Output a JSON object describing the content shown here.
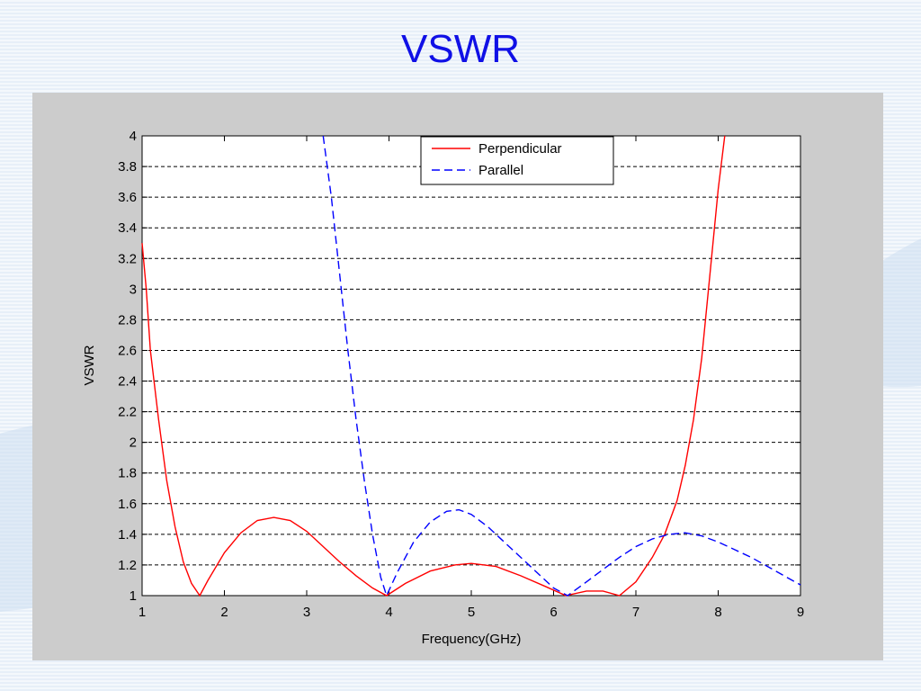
{
  "slide": {
    "title": "VSWR"
  },
  "colors": {
    "perpendicular": "#ff0000",
    "parallel": "#0000ff",
    "title": "#1010e6",
    "panel": "#cccccc"
  },
  "chart_data": {
    "type": "line",
    "title": "",
    "xlabel": "Frequency(GHz)",
    "ylabel": "VSWR",
    "xlim": [
      1,
      9
    ],
    "ylim": [
      1,
      4
    ],
    "xticks": [
      1,
      2,
      3,
      4,
      5,
      6,
      7,
      8,
      9
    ],
    "yticks": [
      1,
      1.2,
      1.4,
      1.6,
      1.8,
      2,
      2.2,
      2.4,
      2.6,
      2.8,
      3,
      3.2,
      3.4,
      3.6,
      3.8,
      4
    ],
    "grid": "horizontal dashed",
    "legend_position": "top-right",
    "series": [
      {
        "name": "Perpendicular",
        "style": "solid",
        "color": "#ff0000",
        "x": [
          1.0,
          1.05,
          1.1,
          1.2,
          1.3,
          1.4,
          1.5,
          1.6,
          1.7,
          1.8,
          2.0,
          2.2,
          2.4,
          2.6,
          2.8,
          3.0,
          3.2,
          3.4,
          3.6,
          3.8,
          3.97,
          4.2,
          4.5,
          4.8,
          5.0,
          5.3,
          5.6,
          5.9,
          6.15,
          6.4,
          6.6,
          6.8,
          7.0,
          7.2,
          7.35,
          7.5,
          7.6,
          7.7,
          7.8,
          7.9,
          8.0,
          8.08
        ],
        "y": [
          3.3,
          3.0,
          2.6,
          2.15,
          1.75,
          1.45,
          1.22,
          1.08,
          1.0,
          1.1,
          1.28,
          1.41,
          1.49,
          1.51,
          1.49,
          1.42,
          1.32,
          1.22,
          1.13,
          1.05,
          1.0,
          1.08,
          1.16,
          1.2,
          1.21,
          1.19,
          1.13,
          1.06,
          1.0,
          1.03,
          1.03,
          1.0,
          1.09,
          1.25,
          1.4,
          1.62,
          1.85,
          2.15,
          2.55,
          3.1,
          3.65,
          4.0
        ]
      },
      {
        "name": "Parallel",
        "style": "dashed",
        "color": "#0000ff",
        "x": [
          3.2,
          3.3,
          3.4,
          3.5,
          3.6,
          3.7,
          3.8,
          3.9,
          3.97,
          4.1,
          4.3,
          4.5,
          4.7,
          4.85,
          5.0,
          5.2,
          5.4,
          5.6,
          5.8,
          6.0,
          6.17,
          6.4,
          6.6,
          6.8,
          7.0,
          7.2,
          7.4,
          7.6,
          7.8,
          8.0,
          8.2,
          8.4,
          8.6,
          8.8,
          9.0
        ],
        "y": [
          4.0,
          3.6,
          3.1,
          2.6,
          2.15,
          1.75,
          1.4,
          1.12,
          1.0,
          1.15,
          1.35,
          1.48,
          1.55,
          1.56,
          1.53,
          1.45,
          1.35,
          1.25,
          1.15,
          1.05,
          1.0,
          1.09,
          1.17,
          1.25,
          1.32,
          1.37,
          1.4,
          1.41,
          1.39,
          1.35,
          1.3,
          1.25,
          1.19,
          1.13,
          1.07
        ]
      }
    ]
  }
}
